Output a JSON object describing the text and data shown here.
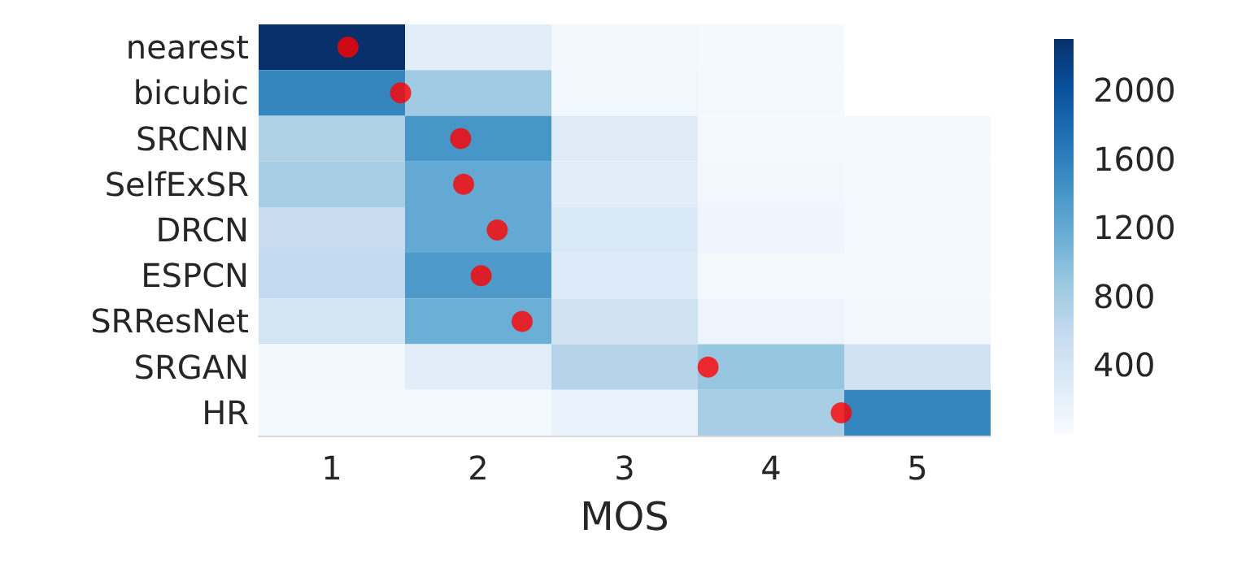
{
  "chart_data": {
    "type": "heatmap",
    "xlabel": "MOS",
    "x": [
      1,
      2,
      3,
      4,
      5
    ],
    "xlim": [
      0.5,
      5.5
    ],
    "xticks": [
      1,
      2,
      3,
      4,
      5
    ],
    "y_categories": [
      "nearest",
      "bicubic",
      "SRCNN",
      "SelfExSR",
      "DRCN",
      "ESPCN",
      "SRResNet",
      "SRGAN",
      "HR"
    ],
    "cells": [
      [
        2300,
        250,
        50,
        40,
        null
      ],
      [
        1550,
        850,
        80,
        40,
        null
      ],
      [
        750,
        1400,
        280,
        30,
        30
      ],
      [
        800,
        1200,
        250,
        70,
        30
      ],
      [
        550,
        1200,
        330,
        100,
        40
      ],
      [
        600,
        1350,
        300,
        40,
        30
      ],
      [
        420,
        1150,
        450,
        120,
        60
      ],
      [
        60,
        250,
        700,
        900,
        450
      ],
      [
        40,
        40,
        150,
        800,
        1550
      ]
    ],
    "clim": [
      0,
      2300
    ],
    "cticks": [
      400,
      800,
      1200,
      1600,
      2000
    ],
    "series": [
      {
        "type": "scatter",
        "color": "#ff0000",
        "x": [
          "nearest",
          "bicubic",
          "SRCNN",
          "SelfExSR",
          "DRCN",
          "ESPCN",
          "SRResNet",
          "SRGAN",
          "HR"
        ],
        "values": [
          1.11,
          1.47,
          1.88,
          1.9,
          2.13,
          2.02,
          2.3,
          3.57,
          4.48
        ]
      }
    ],
    "orientation": "horizontal",
    "marker": "circle",
    "grid": false
  }
}
